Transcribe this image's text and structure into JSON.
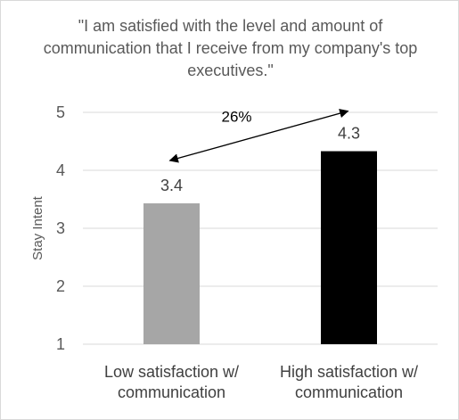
{
  "chart_data": {
    "type": "bar",
    "title": "\"I am satisfied with the level and amount of communication that I receive from my company's top executives.\"",
    "xlabel": "",
    "ylabel": "Stay Intent",
    "ylim": [
      1,
      5
    ],
    "yticks": [
      1,
      2,
      3,
      4,
      5
    ],
    "grid": true,
    "legend": "none",
    "categories": [
      [
        "Low satisfaction w/",
        "communication"
      ],
      [
        "High satisfaction w/",
        "communication"
      ]
    ],
    "values": [
      3.43,
      4.33
    ],
    "data_labels": [
      "3.4",
      "4.3"
    ],
    "bar_colors": [
      "#a6a6a6",
      "#000000"
    ],
    "annotations": [
      {
        "text": "26%",
        "type": "double-arrow",
        "from_category": 0,
        "to_category": 1
      }
    ]
  },
  "colors": {
    "gridline": "#d9d9d9",
    "text": "#595959",
    "label": "#404040"
  }
}
